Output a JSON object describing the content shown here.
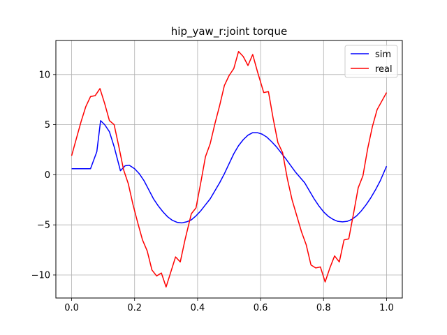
{
  "chart_data": {
    "type": "line",
    "title": "hip_yaw_r:joint torque",
    "xlabel": "",
    "ylabel": "",
    "xlim": [
      -0.05,
      1.05
    ],
    "ylim": [
      -12.3,
      13.4
    ],
    "xticks": [
      0.0,
      0.2,
      0.4,
      0.6,
      0.8,
      1.0
    ],
    "xtick_labels": [
      "0.0",
      "0.2",
      "0.4",
      "0.6",
      "0.8",
      "1.0"
    ],
    "yticks": [
      -10,
      -5,
      0,
      5,
      10
    ],
    "ytick_labels": [
      "−10",
      "−5",
      "0",
      "5",
      "10"
    ],
    "grid": true,
    "legend_position": "top-right",
    "series": [
      {
        "name": "sim",
        "color": "#0000ff",
        "points": [
          [
            0.0,
            0.6
          ],
          [
            0.02,
            0.6
          ],
          [
            0.04,
            0.6
          ],
          [
            0.06,
            0.6
          ],
          [
            0.08,
            2.3
          ],
          [
            0.092,
            5.4
          ],
          [
            0.105,
            5.0
          ],
          [
            0.12,
            4.3
          ],
          [
            0.135,
            2.8
          ],
          [
            0.155,
            0.4
          ],
          [
            0.17,
            0.9
          ],
          [
            0.183,
            0.95
          ],
          [
            0.2,
            0.6
          ],
          [
            0.215,
            0.1
          ],
          [
            0.23,
            -0.6
          ],
          [
            0.245,
            -1.5
          ],
          [
            0.26,
            -2.4
          ],
          [
            0.275,
            -3.1
          ],
          [
            0.29,
            -3.7
          ],
          [
            0.305,
            -4.2
          ],
          [
            0.32,
            -4.55
          ],
          [
            0.335,
            -4.75
          ],
          [
            0.35,
            -4.8
          ],
          [
            0.365,
            -4.7
          ],
          [
            0.38,
            -4.5
          ],
          [
            0.395,
            -4.1
          ],
          [
            0.41,
            -3.6
          ],
          [
            0.425,
            -3.0
          ],
          [
            0.44,
            -2.4
          ],
          [
            0.455,
            -1.6
          ],
          [
            0.47,
            -0.8
          ],
          [
            0.485,
            0.1
          ],
          [
            0.5,
            1.1
          ],
          [
            0.515,
            2.1
          ],
          [
            0.53,
            2.9
          ],
          [
            0.545,
            3.5
          ],
          [
            0.56,
            3.95
          ],
          [
            0.575,
            4.2
          ],
          [
            0.59,
            4.2
          ],
          [
            0.605,
            4.05
          ],
          [
            0.62,
            3.75
          ],
          [
            0.635,
            3.3
          ],
          [
            0.65,
            2.8
          ],
          [
            0.665,
            2.2
          ],
          [
            0.68,
            1.6
          ],
          [
            0.695,
            0.95
          ],
          [
            0.71,
            0.3
          ],
          [
            0.725,
            -0.25
          ],
          [
            0.74,
            -0.8
          ],
          [
            0.755,
            -1.6
          ],
          [
            0.77,
            -2.4
          ],
          [
            0.785,
            -3.1
          ],
          [
            0.8,
            -3.7
          ],
          [
            0.815,
            -4.15
          ],
          [
            0.83,
            -4.45
          ],
          [
            0.845,
            -4.65
          ],
          [
            0.86,
            -4.7
          ],
          [
            0.875,
            -4.65
          ],
          [
            0.89,
            -4.45
          ],
          [
            0.905,
            -4.1
          ],
          [
            0.92,
            -3.6
          ],
          [
            0.935,
            -3.0
          ],
          [
            0.95,
            -2.3
          ],
          [
            0.965,
            -1.5
          ],
          [
            0.98,
            -0.6
          ],
          [
            1.0,
            0.85
          ]
        ]
      },
      {
        "name": "real",
        "color": "#ff0000",
        "points": [
          [
            0.0,
            1.9
          ],
          [
            0.015,
            3.6
          ],
          [
            0.03,
            5.3
          ],
          [
            0.045,
            6.8
          ],
          [
            0.06,
            7.8
          ],
          [
            0.075,
            7.9
          ],
          [
            0.09,
            8.6
          ],
          [
            0.105,
            7.1
          ],
          [
            0.12,
            5.4
          ],
          [
            0.135,
            5.0
          ],
          [
            0.15,
            2.8
          ],
          [
            0.165,
            0.5
          ],
          [
            0.18,
            -0.9
          ],
          [
            0.195,
            -3.0
          ],
          [
            0.21,
            -4.8
          ],
          [
            0.225,
            -6.5
          ],
          [
            0.24,
            -7.6
          ],
          [
            0.255,
            -9.5
          ],
          [
            0.27,
            -10.1
          ],
          [
            0.285,
            -9.8
          ],
          [
            0.3,
            -11.2
          ],
          [
            0.315,
            -9.7
          ],
          [
            0.33,
            -8.2
          ],
          [
            0.345,
            -8.7
          ],
          [
            0.36,
            -6.5
          ],
          [
            0.38,
            -3.9
          ],
          [
            0.395,
            -3.3
          ],
          [
            0.41,
            -0.8
          ],
          [
            0.425,
            1.8
          ],
          [
            0.44,
            3.1
          ],
          [
            0.455,
            5.1
          ],
          [
            0.47,
            6.9
          ],
          [
            0.485,
            8.9
          ],
          [
            0.5,
            9.9
          ],
          [
            0.515,
            10.6
          ],
          [
            0.53,
            12.3
          ],
          [
            0.545,
            11.8
          ],
          [
            0.56,
            10.9
          ],
          [
            0.575,
            12.0
          ],
          [
            0.59,
            10.3
          ],
          [
            0.61,
            8.2
          ],
          [
            0.625,
            8.3
          ],
          [
            0.64,
            5.6
          ],
          [
            0.655,
            3.2
          ],
          [
            0.67,
            2.2
          ],
          [
            0.685,
            -0.4
          ],
          [
            0.7,
            -2.5
          ],
          [
            0.715,
            -4.1
          ],
          [
            0.73,
            -5.7
          ],
          [
            0.745,
            -7.0
          ],
          [
            0.76,
            -9.0
          ],
          [
            0.775,
            -9.3
          ],
          [
            0.79,
            -9.2
          ],
          [
            0.805,
            -10.7
          ],
          [
            0.82,
            -9.3
          ],
          [
            0.835,
            -8.1
          ],
          [
            0.85,
            -8.7
          ],
          [
            0.865,
            -6.5
          ],
          [
            0.88,
            -6.4
          ],
          [
            0.895,
            -3.9
          ],
          [
            0.91,
            -1.3
          ],
          [
            0.925,
            -0.1
          ],
          [
            0.94,
            2.6
          ],
          [
            0.955,
            4.8
          ],
          [
            0.97,
            6.5
          ],
          [
            1.0,
            8.2
          ]
        ]
      }
    ]
  }
}
